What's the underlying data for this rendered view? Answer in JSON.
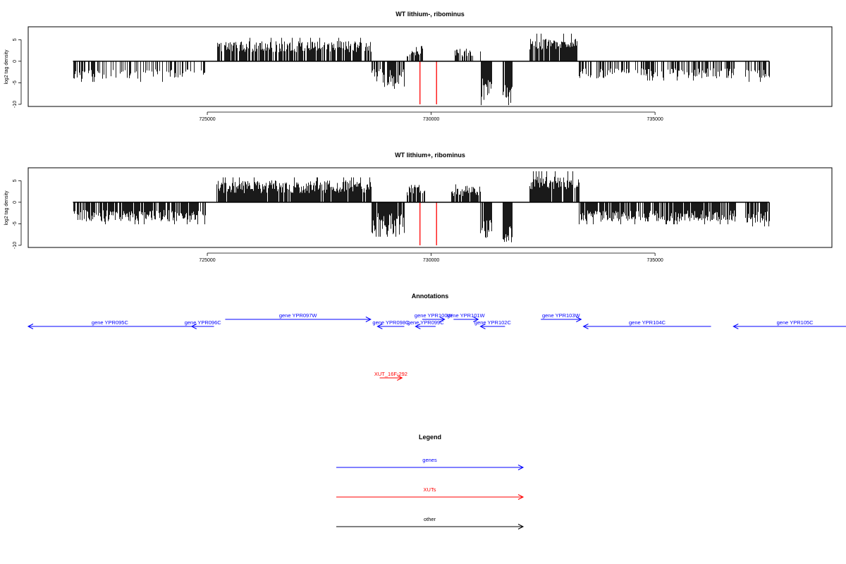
{
  "chart_data": [
    {
      "type": "bar",
      "panel": "track",
      "title": "WT lithium-, ribominus",
      "xlabel": "",
      "ylabel": "log2 tag density",
      "xlim": [
        721000,
        738950
      ],
      "ylim": [
        -10.5,
        8
      ],
      "x_ticks": [
        725000,
        730000,
        735000
      ],
      "y_ticks": [
        5,
        0,
        -5,
        -10
      ],
      "grid": false,
      "markers_x": [
        729750,
        730120
      ],
      "marker_color": "#ff0000",
      "segments": [
        {
          "x0": 722000,
          "x1": 724950,
          "base": -3,
          "amp": 1.1,
          "density": 0.36
        },
        {
          "x0": 725200,
          "x1": 728650,
          "base": 3.4,
          "amp": 1.3,
          "density": 0.75
        },
        {
          "x0": 728650,
          "x1": 729400,
          "base": -4,
          "amp": 2.2,
          "density": 0.75
        },
        {
          "x0": 729450,
          "x1": 729800,
          "base": 2.2,
          "amp": 1.1,
          "density": 0.6
        },
        {
          "x0": 730500,
          "x1": 731100,
          "base": 2,
          "amp": 1,
          "density": 0.55
        },
        {
          "x0": 731100,
          "x1": 731350,
          "base": -6.5,
          "amp": 2.5,
          "density": 0.9
        },
        {
          "x0": 731600,
          "x1": 731800,
          "base": -7.5,
          "amp": 2.2,
          "density": 0.9
        },
        {
          "x0": 732200,
          "x1": 733250,
          "base": 4,
          "amp": 1.3,
          "density": 0.9
        },
        {
          "x0": 733300,
          "x1": 736800,
          "base": -2.8,
          "amp": 1.2,
          "density": 0.5
        },
        {
          "x0": 737000,
          "x1": 737550,
          "base": -3,
          "amp": 1.1,
          "density": 0.6
        }
      ]
    },
    {
      "type": "bar",
      "panel": "track",
      "title": "WT lithium+, ribominus",
      "xlabel": "",
      "ylabel": "log2 tag density",
      "xlim": [
        721000,
        738950
      ],
      "ylim": [
        -10.5,
        8
      ],
      "x_ticks": [
        725000,
        730000,
        735000
      ],
      "y_ticks": [
        5,
        0,
        -5,
        -10
      ],
      "grid": false,
      "markers_x": [
        729750,
        730120
      ],
      "marker_color": "#ff0000",
      "segments": [
        {
          "x0": 722000,
          "x1": 724950,
          "base": -3.2,
          "amp": 1.4,
          "density": 0.75
        },
        {
          "x0": 725200,
          "x1": 728650,
          "base": 3.6,
          "amp": 1.5,
          "density": 0.95
        },
        {
          "x0": 728650,
          "x1": 729400,
          "base": -5,
          "amp": 2.5,
          "density": 0.9
        },
        {
          "x0": 729450,
          "x1": 729850,
          "base": 2.5,
          "amp": 1.2,
          "density": 0.8
        },
        {
          "x0": 730450,
          "x1": 731100,
          "base": 2.6,
          "amp": 1.2,
          "density": 0.8
        },
        {
          "x0": 731100,
          "x1": 731350,
          "base": -6.5,
          "amp": 2.5,
          "density": 0.95
        },
        {
          "x0": 731600,
          "x1": 731800,
          "base": -7.5,
          "amp": 2.3,
          "density": 0.95
        },
        {
          "x0": 732200,
          "x1": 733300,
          "base": 4.5,
          "amp": 1.5,
          "density": 0.95
        },
        {
          "x0": 733300,
          "x1": 736800,
          "base": -3.2,
          "amp": 1.3,
          "density": 0.85
        },
        {
          "x0": 737000,
          "x1": 737550,
          "base": -3.5,
          "amp": 1.4,
          "density": 0.85
        }
      ]
    },
    {
      "type": "diagram",
      "panel": "annotations",
      "title": "Annotations",
      "xlim": [
        721000,
        738950
      ],
      "features": [
        {
          "label": "gene YPR095C",
          "start": 721000,
          "end": 724650,
          "strand": "-",
          "row": 1,
          "kind": "gene"
        },
        {
          "label": "gene YPR096C",
          "start": 724650,
          "end": 725150,
          "strand": "-",
          "row": 1,
          "kind": "gene"
        },
        {
          "label": "gene YPR097W",
          "start": 725400,
          "end": 728650,
          "strand": "+",
          "row": 0,
          "kind": "gene"
        },
        {
          "label": "gene YPR098C",
          "start": 728800,
          "end": 729400,
          "strand": "-",
          "row": 1,
          "kind": "gene"
        },
        {
          "label": "gene YPR099C",
          "start": 729650,
          "end": 730100,
          "strand": "-",
          "row": 1,
          "kind": "gene"
        },
        {
          "label": "gene YPR100W",
          "start": 729800,
          "end": 730300,
          "strand": "+",
          "row": 0,
          "kind": "gene"
        },
        {
          "label": "gene YPR101W",
          "start": 730500,
          "end": 731050,
          "strand": "+",
          "row": 0,
          "kind": "gene"
        },
        {
          "label": "gene YPR102C",
          "start": 731100,
          "end": 731650,
          "strand": "-",
          "row": 1,
          "kind": "gene"
        },
        {
          "label": "gene YPR103W",
          "start": 732450,
          "end": 733350,
          "strand": "+",
          "row": 0,
          "kind": "gene"
        },
        {
          "label": "gene YPR104C",
          "start": 733400,
          "end": 736250,
          "strand": "-",
          "row": 1,
          "kind": "gene"
        },
        {
          "label": "gene YPR105C",
          "start": 736750,
          "end": 739500,
          "strand": "-",
          "row": 1,
          "kind": "gene"
        },
        {
          "label": "XUT_16F-292",
          "start": 728850,
          "end": 729350,
          "strand": "+",
          "row": 2,
          "kind": "XUT"
        }
      ]
    },
    {
      "type": "legend",
      "panel": "legend",
      "title": "Legend",
      "entries": [
        {
          "label": "genes",
          "color": "#0000ff"
        },
        {
          "label": "XUTs",
          "color": "#ff0000"
        },
        {
          "label": "other",
          "color": "#000000"
        }
      ]
    }
  ]
}
